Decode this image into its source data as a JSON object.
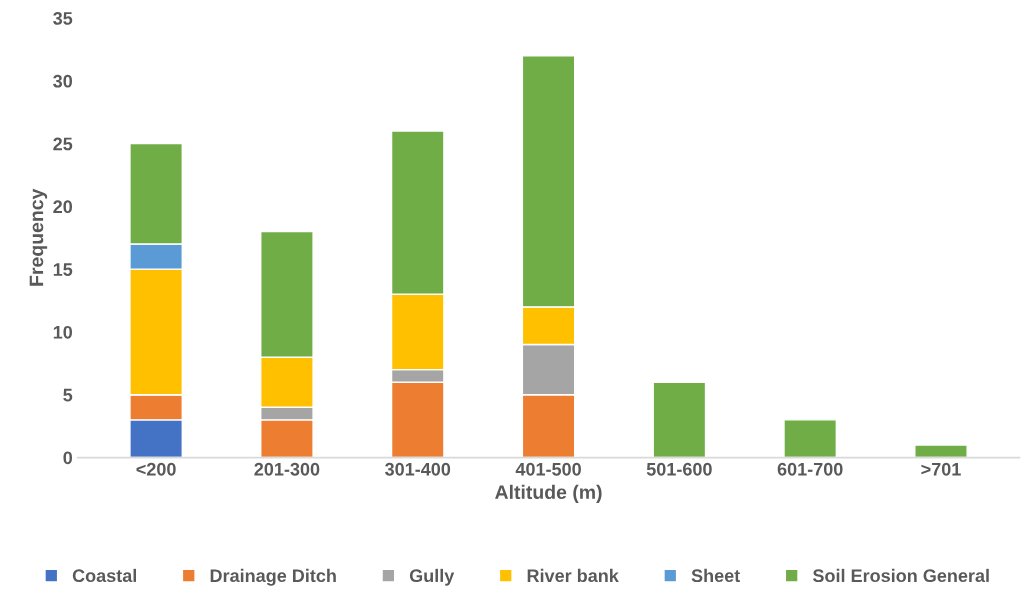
{
  "chart_data": {
    "type": "bar",
    "stacked": true,
    "xlabel": "Altitude (m)",
    "ylabel": "Frequency",
    "categories": [
      "<200",
      "201-300",
      "301-400",
      "401-500",
      "501-600",
      "601-700",
      ">701"
    ],
    "series": [
      {
        "name": "Coastal",
        "color": "#4472c4",
        "values": [
          3,
          0,
          0,
          0,
          0,
          0,
          0
        ]
      },
      {
        "name": "Drainage Ditch",
        "color": "#ed7d31",
        "values": [
          2,
          3,
          6,
          5,
          0,
          0,
          0
        ]
      },
      {
        "name": "Gully",
        "color": "#a5a5a5",
        "values": [
          0,
          1,
          1,
          4,
          0,
          0,
          0
        ]
      },
      {
        "name": "River bank",
        "color": "#ffc000",
        "values": [
          10,
          4,
          6,
          3,
          0,
          0,
          0
        ]
      },
      {
        "name": "Sheet",
        "color": "#5b9bd5",
        "values": [
          2,
          0,
          0,
          0,
          0,
          0,
          0
        ]
      },
      {
        "name": "Soil Erosion General",
        "color": "#70ad47",
        "values": [
          8,
          10,
          13,
          20,
          6,
          3,
          1
        ]
      }
    ],
    "ylim": [
      0,
      35
    ],
    "yticks": [
      0,
      5,
      10,
      15,
      20,
      25,
      30,
      35
    ],
    "grid": false,
    "legend": "bottom"
  }
}
